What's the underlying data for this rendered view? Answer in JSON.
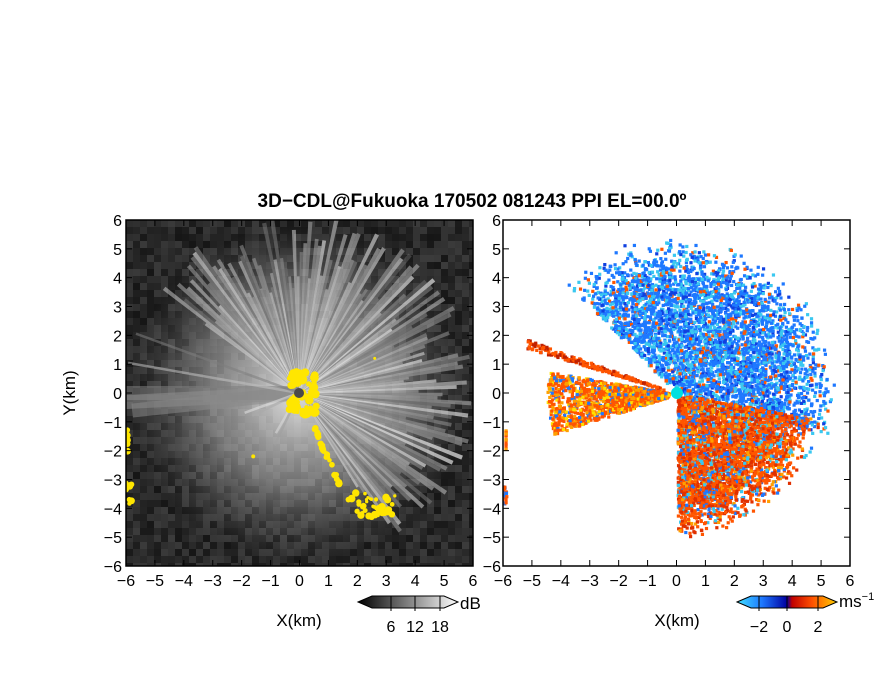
{
  "chart_data": [
    {
      "type": "heatmap",
      "panel": "left",
      "title": "3D−CDL@Fukuoka 170502 081243 PPI EL=00.0º",
      "xlabel": "X(km)",
      "ylabel": "Y(km)",
      "xlim": [
        -6,
        6
      ],
      "ylim": [
        -6,
        6
      ],
      "x_ticks": [
        "−6",
        "−5",
        "−4",
        "−3",
        "−2",
        "−1",
        "0",
        "1",
        "2",
        "3",
        "4",
        "5",
        "6"
      ],
      "y_ticks": [
        "6",
        "5",
        "4",
        "3",
        "2",
        "1",
        "0",
        "−1",
        "−2",
        "−3",
        "−4",
        "−5",
        "−6"
      ],
      "colorbar": {
        "unit": "dB",
        "ticks": [
          6,
          12,
          18
        ],
        "colormap": "grayscale"
      },
      "highlight_color": "#ffe600"
    },
    {
      "type": "heatmap",
      "panel": "right",
      "xlabel": "X(km)",
      "xlim": [
        -6,
        6
      ],
      "ylim": [
        -6,
        6
      ],
      "x_ticks": [
        "−6",
        "−5",
        "−4",
        "−3",
        "−2",
        "−1",
        "0",
        "1",
        "2",
        "3",
        "4",
        "5",
        "6"
      ],
      "y_ticks": [
        "6",
        "5",
        "4",
        "3",
        "2",
        "1",
        "0",
        "−1",
        "−2",
        "−3",
        "−4",
        "−5",
        "−6"
      ],
      "colorbar": {
        "unit": "ms",
        "unit_exp": "−1",
        "ticks": [
          "−2",
          "0",
          "2"
        ],
        "colormap": "cyan-blue-red-orange"
      },
      "colors": {
        "negative": "#1e78ff",
        "light_negative": "#3ac8f0",
        "positive": "#ff5500",
        "light_positive": "#ffa000",
        "origin": "#00e5e5"
      }
    }
  ]
}
